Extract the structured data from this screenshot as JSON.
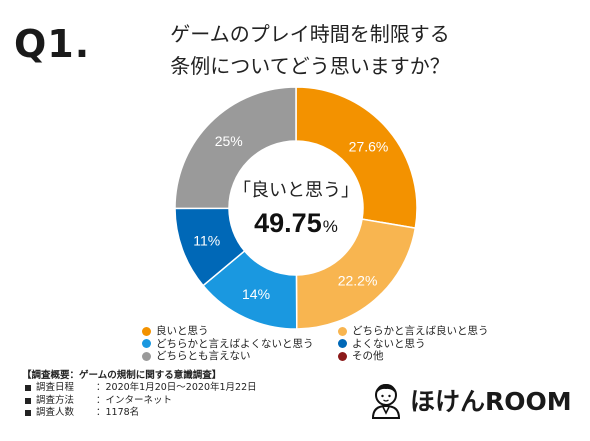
{
  "question_label": "Q1.",
  "title_lines": [
    "ゲームのプレイ時間を制限する",
    "条例についてどう思いますか？"
  ],
  "center": {
    "label": "「良いと思う」",
    "value": "49.75",
    "unit": "%"
  },
  "chart_data": {
    "type": "pie",
    "title": "",
    "slices": [
      {
        "name": "良いと思う",
        "value": 27.6,
        "label": "27.6%",
        "color": "#F39200"
      },
      {
        "name": "どちらかと言えば良いと思う",
        "value": 22.2,
        "label": "22.2%",
        "color": "#F8B550"
      },
      {
        "name": "どちらかと言えばよくないと思う",
        "value": 14,
        "label": "14%",
        "color": "#1A98E0"
      },
      {
        "name": "よくないと思う",
        "value": 11,
        "label": "11%",
        "color": "#0068B7"
      },
      {
        "name": "どちらとも言えない",
        "value": 25,
        "label": "25%",
        "color": "#9A9A9A"
      },
      {
        "name": "その他",
        "value": 0,
        "label": "",
        "color": "#8B1A1A"
      }
    ],
    "donut": true,
    "legend_placement": "bottom"
  },
  "legend": [
    {
      "name": "良いと思う",
      "color": "#F39200"
    },
    {
      "name": "どちらかと言えば良いと思う",
      "color": "#F8B550"
    },
    {
      "name": "どちらかと言えばよくないと思う",
      "color": "#1A98E0"
    },
    {
      "name": "よくないと思う",
      "color": "#0068B7"
    },
    {
      "name": "どちらとも言えない",
      "color": "#9A9A9A"
    },
    {
      "name": "その他",
      "color": "#8B1A1A"
    }
  ],
  "survey": {
    "title": "【調査概要：ゲームの規制に関する意識調査】",
    "rows": [
      {
        "key": "調査日程",
        "value": "：2020年1月20日～2020年1月22日"
      },
      {
        "key": "調査方法",
        "value": "：インターネット"
      },
      {
        "key": "調査人数",
        "value": "：1178名"
      }
    ]
  },
  "brand": {
    "name": "ほけんROOM"
  }
}
